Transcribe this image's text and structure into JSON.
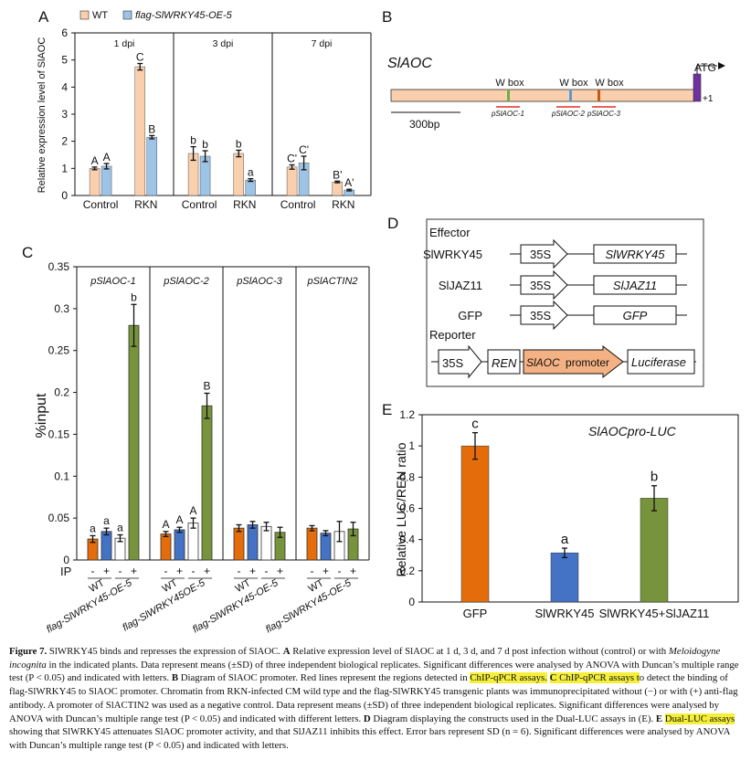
{
  "panels": {
    "A": {
      "letter": "A",
      "legend": [
        "WT",
        "flag-SlWRKY45-OE-5"
      ],
      "colors": {
        "wt": "#f9cfae",
        "oe": "#9dc3e6"
      },
      "ylabel": "Relative expression level of SlAOC",
      "yticks": [
        "0",
        "1",
        "2",
        "3",
        "4",
        "5",
        "6"
      ],
      "groups": [
        {
          "label": "1 dpi",
          "conds": [
            {
              "x": "Control",
              "wt": 1.0,
              "wt_err": 0.05,
              "wt_sig": "A",
              "oe": 1.08,
              "oe_err": 0.1,
              "oe_sig": "A"
            },
            {
              "x": "RKN",
              "wt": 4.75,
              "wt_err": 0.12,
              "wt_sig": "C",
              "oe": 2.15,
              "oe_err": 0.06,
              "oe_sig": "B"
            }
          ]
        },
        {
          "label": "3 dpi",
          "conds": [
            {
              "x": "Control",
              "wt": 1.55,
              "wt_err": 0.25,
              "wt_sig": "b",
              "oe": 1.45,
              "oe_err": 0.2,
              "oe_sig": "b"
            },
            {
              "x": "RKN",
              "wt": 1.55,
              "wt_err": 0.12,
              "wt_sig": "b",
              "oe": 0.57,
              "oe_err": 0.05,
              "oe_sig": "a"
            }
          ]
        },
        {
          "label": "7 dpi",
          "conds": [
            {
              "x": "Control",
              "wt": 1.05,
              "wt_err": 0.08,
              "wt_sig": "C'",
              "oe": 1.2,
              "oe_err": 0.25,
              "oe_sig": "C'"
            },
            {
              "x": "RKN",
              "wt": 0.5,
              "wt_err": 0.03,
              "wt_sig": "B'",
              "oe": 0.2,
              "oe_err": 0.03,
              "oe_sig": "A'"
            }
          ]
        }
      ]
    },
    "B": {
      "letter": "B",
      "title": "SlAOC",
      "atg": "ATG",
      "plus1": "+1",
      "scale": "300bp",
      "wbox": [
        "W box",
        "W box",
        "W box"
      ],
      "regions": [
        "pSlAOC-1",
        "pSlAOC-2",
        "pSlAOC-3"
      ],
      "colors": {
        "bar": "#f9cfae",
        "start": "#7030a0",
        "wbox1": "#70ad47",
        "wbox2": "#5b9bd5",
        "wbox3": "#c55a11",
        "region": "#e0302a"
      }
    },
    "C": {
      "letter": "C",
      "ylabel": "%input",
      "yticks": [
        "0",
        "0.05",
        "0.1",
        "0.15",
        "0.2",
        "0.25",
        "0.3",
        "0.35"
      ],
      "ip": "IP",
      "colors": {
        "wt_minus": "#e46c0a",
        "wt_plus": "#4472c4",
        "oe_minus": "#ffffff",
        "oe_plus": "#77933c"
      },
      "groups": [
        {
          "label": "pSlAOC-1",
          "xlabels": [
            "WT",
            "flag-SlWRKY45-OE-5"
          ],
          "vals": [
            0.025,
            0.034,
            0.026,
            0.28
          ],
          "errs": [
            0.004,
            0.004,
            0.004,
            0.025
          ],
          "sigs": [
            "a",
            "a",
            "a",
            "b"
          ]
        },
        {
          "label": "pSlAOC-2",
          "xlabels": [
            "WT",
            "flag-SlWRKY45OE-5"
          ],
          "vals": [
            0.031,
            0.036,
            0.044,
            0.184
          ],
          "errs": [
            0.003,
            0.003,
            0.006,
            0.015
          ],
          "sigs": [
            "A",
            "A",
            "A",
            "B"
          ]
        },
        {
          "label": "pSlAOC-3",
          "xlabels": [
            "WT",
            "flag-SlWRKY45-OE-5"
          ],
          "vals": [
            0.038,
            0.042,
            0.04,
            0.033
          ],
          "errs": [
            0.004,
            0.004,
            0.005,
            0.006
          ],
          "sigs": [
            "",
            "",
            "",
            ""
          ]
        },
        {
          "label": "pSlACTIN2",
          "xlabels": [
            "WT",
            "flag-SlWRKY45-OE-5"
          ],
          "vals": [
            0.038,
            0.032,
            0.034,
            0.037
          ],
          "errs": [
            0.003,
            0.003,
            0.012,
            0.008
          ],
          "sigs": [
            "",
            "",
            "",
            ""
          ]
        }
      ]
    },
    "D": {
      "letter": "D",
      "effector": "Effector",
      "reporter": "Reporter",
      "rows": [
        {
          "name": "SlWRKY45",
          "promoter": "35S",
          "gene": "SlWRKY45"
        },
        {
          "name": "SlJAZ11",
          "promoter": "35S",
          "gene": "SlJAZ11"
        },
        {
          "name": "GFP",
          "promoter": "35S",
          "gene": "GFP"
        }
      ],
      "rep": {
        "promoter": "35S",
        "ren": "REN",
        "aoc": "SlAOC",
        "aoc_suffix": "promoter",
        "luc": "Luciferase"
      },
      "colors": {
        "aoc": "#f4b183"
      }
    },
    "E": {
      "letter": "E",
      "title": "SlAOCpro-LUC",
      "ylabel": "Relative  LUC/REN ratio",
      "yticks": [
        "0",
        "0.2",
        "0.4",
        "0.6",
        "0.8",
        "1",
        "1.2"
      ],
      "bars": [
        {
          "x": "GFP",
          "value": 1.0,
          "err": 0.085,
          "sig": "c",
          "color": "#e46c0a"
        },
        {
          "x": "SlWRKY45",
          "value": 0.315,
          "err": 0.03,
          "sig": "a",
          "color": "#4472c4"
        },
        {
          "x": "SlWRKY45+SlJAZ11",
          "value": 0.665,
          "err": 0.08,
          "sig": "b",
          "color": "#77933c"
        }
      ]
    }
  },
  "caption": {
    "fig": "Figure 7.",
    "s1": " SlWRKY45 binds and represses the expression of SlAOC. ",
    "a_letter": "A",
    "s2": " Relative expression level of SlAOC at 1 d, 3 d, and 7 d post infection without (control) or with ",
    "species": "Meloidogyne incognita",
    "s3": " in the indicated plants. Data represent means (±SD) of three independent biological replicates. Significant differences were analysed by ANOVA with Duncan’s multiple range test (P < 0.05) and indicated with letters. ",
    "b_letter": "B",
    "s4": " Diagram of SlAOC promoter. Red lines represent the regions detected in ",
    "hl1": "ChIP-qPCR assays.",
    "s5": " ",
    "c_letter": "C",
    "hl2": " ChIP-qPCR assays t",
    "s6": "o detect the binding of flag-SlWRKY45 to SlAOC promoter. Chromatin from RKN-infected CM wild type and the flag-SlWRKY45 transgenic plants was immunoprecipitated without (−) or with (+) anti-flag antibody. A promoter of SlACTIN2 was used as a negative control. Data represent means (±SD) of three independent biological replicates. Significant differences were analysed by ANOVA with Duncan’s multiple range test (P < 0.05) and indicated with different letters. ",
    "d_letter": "D",
    "s7": " Diagram displaying the constructs used in the Dual-LUC assays in (E). ",
    "e_letter": "E",
    "hl3": "Dual-LUC assays",
    "s8": " showing that SlWRKY45 attenuates SlAOC promoter activity, and that SlJAZ11 inhibits this effect. Error bars represent SD (n = 6). Significant differences were analysed by ANOVA with Duncan’s multiple range test (P < 0.05) and indicated with letters."
  }
}
